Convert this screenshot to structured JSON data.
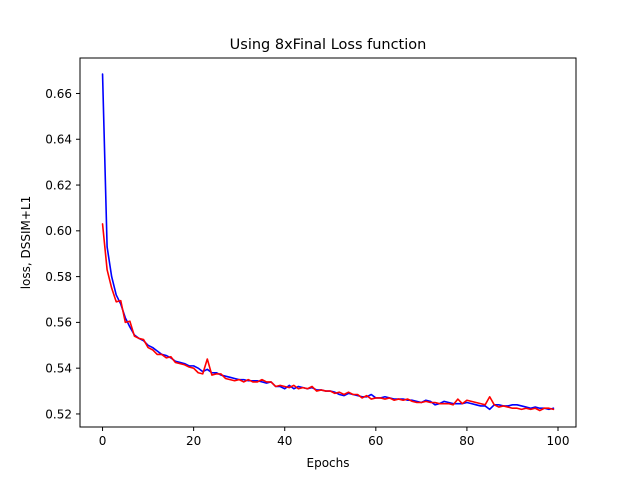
{
  "chart_data": {
    "type": "line",
    "title": "Using 8xFinal Loss function",
    "xlabel": "Epochs",
    "ylabel": "loss, DSSIM+L1",
    "xlim": [
      -4.95,
      103.95
    ],
    "ylim": [
      0.5143,
      0.6755
    ],
    "xticks": [
      0,
      20,
      40,
      60,
      80,
      100
    ],
    "xtick_labels": [
      "0",
      "20",
      "40",
      "60",
      "80",
      "100"
    ],
    "yticks": [
      0.52,
      0.54,
      0.56,
      0.58,
      0.6,
      0.62,
      0.64,
      0.66
    ],
    "ytick_labels": [
      "0.52",
      "0.54",
      "0.56",
      "0.58",
      "0.60",
      "0.62",
      "0.64",
      "0.66"
    ],
    "grid": false,
    "legend": "none",
    "series": [
      {
        "color": "#0000ff",
        "x": [
          0,
          1,
          2,
          3,
          4,
          5,
          6,
          7,
          8,
          9,
          10,
          11,
          12,
          13,
          14,
          15,
          16,
          17,
          18,
          19,
          20,
          21,
          22,
          23,
          24,
          25,
          26,
          27,
          28,
          29,
          30,
          31,
          32,
          33,
          34,
          35,
          36,
          37,
          38,
          39,
          40,
          41,
          42,
          43,
          44,
          45,
          46,
          47,
          48,
          49,
          50,
          51,
          52,
          53,
          54,
          55,
          56,
          57,
          58,
          59,
          60,
          61,
          62,
          63,
          64,
          65,
          66,
          67,
          68,
          69,
          70,
          71,
          72,
          73,
          74,
          75,
          76,
          77,
          78,
          79,
          80,
          81,
          82,
          83,
          84,
          85,
          86,
          87,
          88,
          89,
          90,
          91,
          92,
          93,
          94,
          95,
          96,
          97,
          98,
          99
        ],
        "values": [
          0.6685,
          0.593,
          0.58,
          0.572,
          0.568,
          0.562,
          0.558,
          0.5545,
          0.553,
          0.552,
          0.55,
          0.549,
          0.5475,
          0.546,
          0.5455,
          0.5445,
          0.543,
          0.5425,
          0.542,
          0.541,
          0.541,
          0.54,
          0.5385,
          0.5395,
          0.538,
          0.538,
          0.537,
          0.5365,
          0.536,
          0.5355,
          0.535,
          0.535,
          0.5345,
          0.5345,
          0.5345,
          0.534,
          0.5335,
          0.534,
          0.532,
          0.532,
          0.531,
          0.5325,
          0.531,
          0.532,
          0.5315,
          0.531,
          0.5315,
          0.5305,
          0.5305,
          0.53,
          0.53,
          0.5295,
          0.5285,
          0.528,
          0.529,
          0.5285,
          0.528,
          0.5275,
          0.5275,
          0.5285,
          0.527,
          0.527,
          0.5275,
          0.527,
          0.5265,
          0.5265,
          0.5265,
          0.526,
          0.526,
          0.5255,
          0.525,
          0.526,
          0.5255,
          0.524,
          0.5245,
          0.5255,
          0.525,
          0.5245,
          0.5245,
          0.5245,
          0.525,
          0.5245,
          0.524,
          0.5235,
          0.5235,
          0.522,
          0.524,
          0.524,
          0.5235,
          0.5235,
          0.524,
          0.524,
          0.5235,
          0.523,
          0.5225,
          0.523,
          0.5225,
          0.5225,
          0.522,
          0.5225
        ]
      },
      {
        "color": "#ff0000",
        "x": [
          0,
          1,
          2,
          3,
          4,
          5,
          6,
          7,
          8,
          9,
          10,
          11,
          12,
          13,
          14,
          15,
          16,
          17,
          18,
          19,
          20,
          21,
          22,
          23,
          24,
          25,
          26,
          27,
          28,
          29,
          30,
          31,
          32,
          33,
          34,
          35,
          36,
          37,
          38,
          39,
          40,
          41,
          42,
          43,
          44,
          45,
          46,
          47,
          48,
          49,
          50,
          51,
          52,
          53,
          54,
          55,
          56,
          57,
          58,
          59,
          60,
          61,
          62,
          63,
          64,
          65,
          66,
          67,
          68,
          69,
          70,
          71,
          72,
          73,
          74,
          75,
          76,
          77,
          78,
          79,
          80,
          81,
          82,
          83,
          84,
          85,
          86,
          87,
          88,
          89,
          90,
          91,
          92,
          93,
          94,
          95,
          96,
          97,
          98,
          99
        ],
        "values": [
          0.603,
          0.583,
          0.575,
          0.569,
          0.5695,
          0.56,
          0.5605,
          0.554,
          0.553,
          0.5525,
          0.549,
          0.548,
          0.546,
          0.546,
          0.5445,
          0.545,
          0.5425,
          0.542,
          0.5415,
          0.5405,
          0.54,
          0.538,
          0.5375,
          0.544,
          0.537,
          0.5375,
          0.5375,
          0.5355,
          0.535,
          0.5345,
          0.535,
          0.534,
          0.535,
          0.534,
          0.534,
          0.535,
          0.534,
          0.534,
          0.532,
          0.5325,
          0.532,
          0.5315,
          0.5325,
          0.531,
          0.5315,
          0.531,
          0.532,
          0.53,
          0.5305,
          0.53,
          0.53,
          0.529,
          0.5295,
          0.5285,
          0.5295,
          0.5285,
          0.5285,
          0.527,
          0.528,
          0.5265,
          0.527,
          0.527,
          0.5265,
          0.527,
          0.526,
          0.5265,
          0.526,
          0.5265,
          0.5255,
          0.525,
          0.525,
          0.5255,
          0.525,
          0.525,
          0.5245,
          0.5245,
          0.5245,
          0.524,
          0.5265,
          0.5245,
          0.526,
          0.5255,
          0.525,
          0.5245,
          0.524,
          0.5275,
          0.524,
          0.523,
          0.5235,
          0.523,
          0.5225,
          0.5225,
          0.522,
          0.5225,
          0.522,
          0.5225,
          0.5215,
          0.5225,
          0.5225,
          0.522
        ]
      }
    ]
  }
}
